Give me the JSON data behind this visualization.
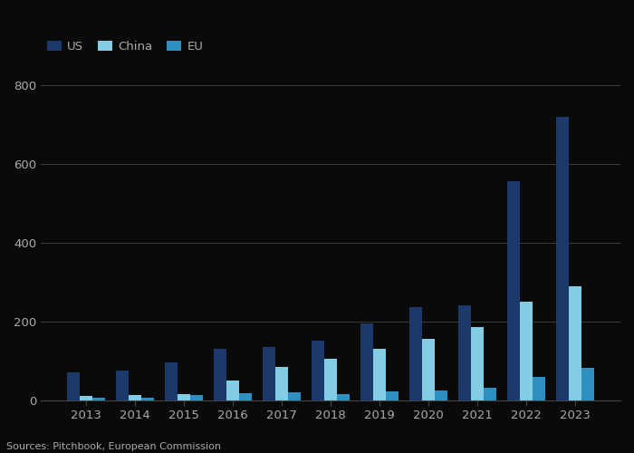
{
  "years": [
    2013,
    2014,
    2015,
    2016,
    2017,
    2018,
    2019,
    2020,
    2021,
    2022,
    2023
  ],
  "us": [
    70,
    75,
    95,
    130,
    135,
    150,
    195,
    235,
    240,
    555,
    720
  ],
  "china": [
    10,
    12,
    15,
    50,
    85,
    105,
    130,
    155,
    185,
    250,
    290
  ],
  "eu": [
    5,
    7,
    12,
    18,
    20,
    15,
    22,
    25,
    32,
    60,
    82
  ],
  "us_color": "#1b3a6b",
  "china_color": "#82cce4",
  "eu_color": "#2e8fc0",
  "background_color": "#0a0a0a",
  "plot_bg_color": "#0a0a0a",
  "text_color": "#aaaaaa",
  "grid_color": "#444444",
  "ylim": [
    0,
    850
  ],
  "yticks": [
    0,
    200,
    400,
    600,
    800
  ],
  "legend_labels": [
    "US",
    "China",
    "EU"
  ],
  "source_text": "Sources: Pitchbook, European Commission",
  "bar_width": 0.26
}
